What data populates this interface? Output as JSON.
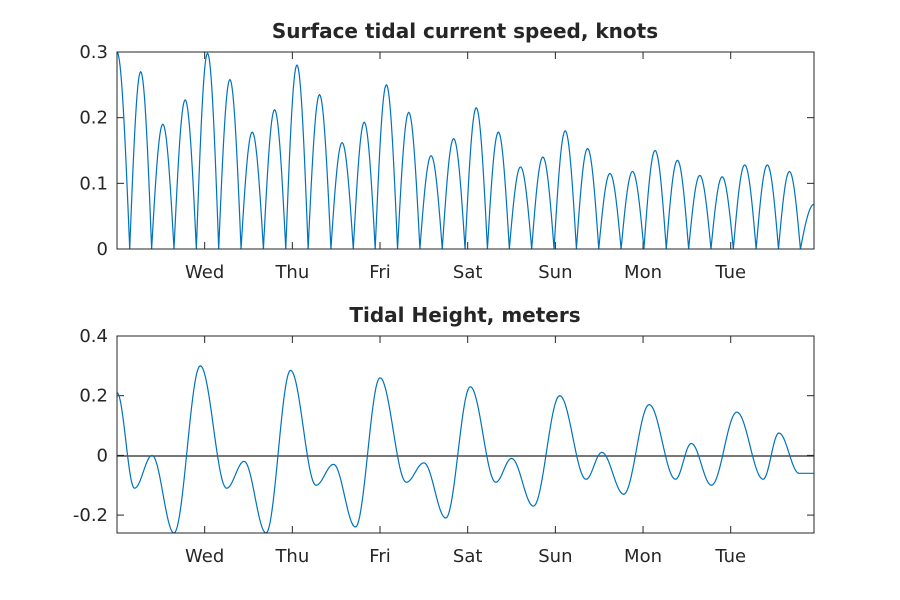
{
  "chart_data": [
    {
      "type": "line",
      "title": "Surface tidal current speed, knots",
      "xlabel": "",
      "ylabel": "",
      "x_unit": "days since start of record",
      "xlim": [
        0,
        7.95
      ],
      "ylim": [
        0,
        0.3
      ],
      "yticks": [
        0,
        0.1,
        0.2,
        0.3
      ],
      "ytick_labels": [
        "0",
        "0.1",
        "0.2",
        "0.3"
      ],
      "xticks": [
        1,
        2,
        3,
        4,
        5,
        6,
        7
      ],
      "xtick_labels": [
        "Wed",
        "Thu",
        "Fri",
        "Sat",
        "Sun",
        "Mon",
        "Tue"
      ],
      "grid": false,
      "series": [
        {
          "color": "#0072BD",
          "peak_times": [
            0.27,
            0.52,
            0.78,
            1.03,
            1.29,
            1.54,
            1.8,
            2.05,
            2.31,
            2.57,
            2.82,
            3.07,
            3.33,
            3.58,
            3.84,
            4.1,
            4.35,
            4.6,
            4.86,
            5.11,
            5.37,
            5.62,
            5.88,
            6.14,
            6.39,
            6.65,
            6.9,
            7.16,
            7.42,
            7.67
          ],
          "peak_values": [
            0.27,
            0.19,
            0.227,
            0.298,
            0.258,
            0.178,
            0.212,
            0.28,
            0.235,
            0.162,
            0.193,
            0.25,
            0.208,
            0.142,
            0.168,
            0.215,
            0.178,
            0.125,
            0.14,
            0.18,
            0.153,
            0.115,
            0.118,
            0.15,
            0.135,
            0.112,
            0.11,
            0.128,
            0.128,
            0.118
          ],
          "start_value": 0.3,
          "end_value": 0.068
        }
      ]
    },
    {
      "type": "line",
      "title": "Tidal Height, meters",
      "xlabel": "",
      "ylabel": "",
      "x_unit": "days since start of record",
      "xlim": [
        0,
        7.95
      ],
      "ylim": [
        -0.26,
        0.4
      ],
      "yticks": [
        -0.2,
        0,
        0.2,
        0.4
      ],
      "ytick_labels": [
        "-0.2",
        "0",
        "0.2",
        "0.4"
      ],
      "xticks": [
        1,
        2,
        3,
        4,
        5,
        6,
        7
      ],
      "xtick_labels": [
        "Wed",
        "Thu",
        "Fri",
        "Sat",
        "Sun",
        "Mon",
        "Tue"
      ],
      "grid": false,
      "zero_line": true,
      "series": [
        {
          "color": "#0072BD",
          "extrema_times": [
            0.0,
            0.2,
            0.4,
            0.65,
            0.95,
            1.25,
            1.45,
            1.7,
            1.98,
            2.27,
            2.47,
            2.72,
            3.0,
            3.3,
            3.5,
            3.75,
            4.03,
            4.32,
            4.5,
            4.75,
            5.05,
            5.35,
            5.53,
            5.78,
            6.07,
            6.37,
            6.55,
            6.78,
            7.07,
            7.37,
            7.55,
            7.78,
            7.95
          ],
          "extrema_values": [
            0.21,
            -0.11,
            0.0,
            -0.26,
            0.3,
            -0.11,
            -0.02,
            -0.26,
            0.285,
            -0.1,
            -0.03,
            -0.24,
            0.26,
            -0.09,
            -0.025,
            -0.21,
            0.23,
            -0.09,
            -0.01,
            -0.17,
            0.2,
            -0.08,
            0.01,
            -0.13,
            0.17,
            -0.08,
            0.04,
            -0.1,
            0.145,
            -0.08,
            0.075,
            -0.06,
            -0.06
          ]
        }
      ]
    }
  ]
}
